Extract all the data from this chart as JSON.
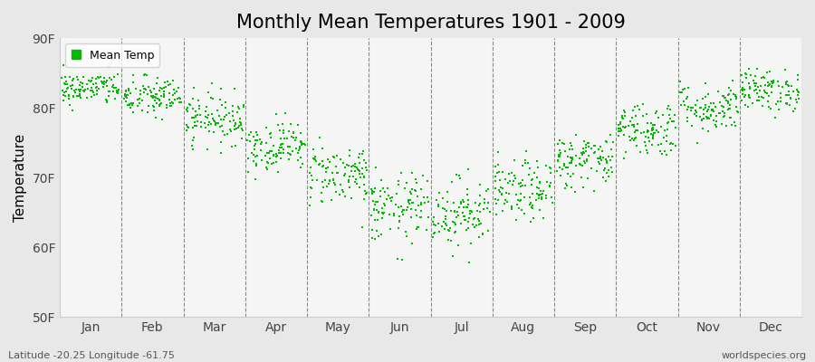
{
  "title": "Monthly Mean Temperatures 1901 - 2009",
  "ylabel": "Temperature",
  "months": [
    "Jan",
    "Feb",
    "Mar",
    "Apr",
    "May",
    "Jun",
    "Jul",
    "Aug",
    "Sep",
    "Oct",
    "Nov",
    "Dec"
  ],
  "month_centers": [
    0.5,
    1.5,
    2.5,
    3.5,
    4.5,
    5.5,
    6.5,
    7.5,
    8.5,
    9.5,
    10.5,
    11.5
  ],
  "ylim": [
    50,
    90
  ],
  "yticks": [
    50,
    60,
    70,
    80,
    90
  ],
  "ytick_labels": [
    "50F",
    "60F",
    "70F",
    "80F",
    "90F"
  ],
  "marker_color": "#00bb00",
  "background_color": "#e8e8e8",
  "plot_background": "#f5f5f5",
  "legend_label": "Mean Temp",
  "subtitle_lat": "Latitude -20.25 Longitude -61.75",
  "watermark": "worldspecies.org",
  "title_fontsize": 15,
  "n_years": 109,
  "mean_temps_F": [
    82.8,
    81.5,
    78.5,
    74.5,
    70.5,
    65.5,
    65.0,
    68.0,
    72.5,
    77.0,
    80.0,
    82.5
  ],
  "std_temps_F": [
    1.2,
    1.5,
    1.8,
    1.8,
    2.2,
    2.5,
    2.5,
    2.2,
    2.0,
    2.0,
    1.8,
    1.5
  ],
  "seed": 42
}
